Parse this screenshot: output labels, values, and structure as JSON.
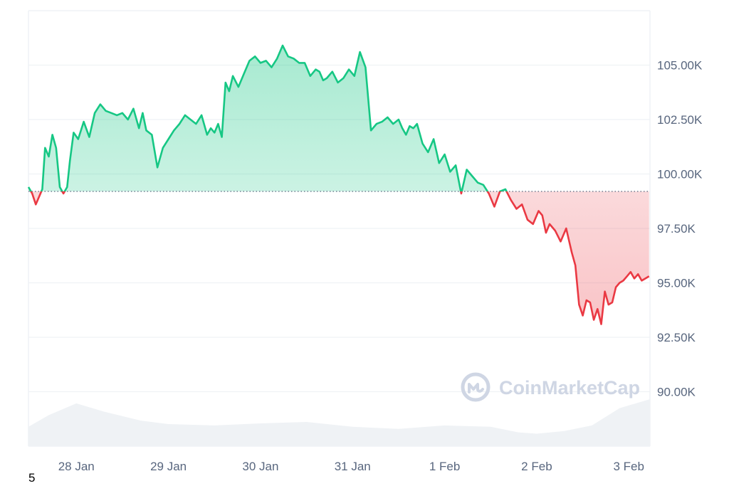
{
  "chart_data": {
    "type": "line",
    "title": "",
    "xlabel": "",
    "ylabel": "",
    "baseline": 99200,
    "ylim": [
      87500,
      107500
    ],
    "yticks": [
      {
        "value": 105000,
        "label": "105.00K"
      },
      {
        "value": 102500,
        "label": "102.50K"
      },
      {
        "value": 100000,
        "label": "100.00K"
      },
      {
        "value": 97500,
        "label": "97.50K"
      },
      {
        "value": 95000,
        "label": "95.00K"
      },
      {
        "value": 92500,
        "label": "92.50K"
      },
      {
        "value": 90000,
        "label": "90.00K"
      }
    ],
    "xticks": [
      {
        "value": 1,
        "label": "28 Jan"
      },
      {
        "value": 2,
        "label": "29 Jan"
      },
      {
        "value": 3,
        "label": "30 Jan"
      },
      {
        "value": 4,
        "label": "31 Jan"
      },
      {
        "value": 5,
        "label": "1 Feb"
      },
      {
        "value": 6,
        "label": "2 Feb"
      },
      {
        "value": 7,
        "label": "3 Feb"
      }
    ],
    "xlim": [
      0.48,
      7.23
    ],
    "series": [
      {
        "x": [
          0.48,
          0.52,
          0.56,
          0.6,
          0.63,
          0.66,
          0.7,
          0.74,
          0.78,
          0.82,
          0.86,
          0.9,
          0.93,
          0.97,
          1.02,
          1.08,
          1.14,
          1.2,
          1.26,
          1.32,
          1.38,
          1.44,
          1.5,
          1.56,
          1.62,
          1.68,
          1.72,
          1.76,
          1.82,
          1.88,
          1.94,
          2.0,
          2.06,
          2.12,
          2.18,
          2.24,
          2.3,
          2.36,
          2.42,
          2.46,
          2.5,
          2.54,
          2.58,
          2.62,
          2.66,
          2.7,
          2.76,
          2.82,
          2.88,
          2.94,
          3.0,
          3.06,
          3.12,
          3.18,
          3.24,
          3.3,
          3.36,
          3.42,
          3.48,
          3.54,
          3.6,
          3.64,
          3.68,
          3.72,
          3.78,
          3.84,
          3.9,
          3.96,
          4.02,
          4.08,
          4.14,
          4.2,
          4.26,
          4.32,
          4.38,
          4.44,
          4.5,
          4.54,
          4.58,
          4.62,
          4.66,
          4.7,
          4.76,
          4.82,
          4.88,
          4.94,
          5.0,
          5.06,
          5.12,
          5.18,
          5.24,
          5.3,
          5.36,
          5.42,
          5.48,
          5.54,
          5.6,
          5.66,
          5.72,
          5.78,
          5.84,
          5.9,
          5.96,
          6.02,
          6.06,
          6.1,
          6.14,
          6.2,
          6.26,
          6.32,
          6.38,
          6.42,
          6.46,
          6.5,
          6.54,
          6.58,
          6.62,
          6.66,
          6.7,
          6.74,
          6.78,
          6.82,
          6.86,
          6.9,
          6.94,
          6.98,
          7.02,
          7.06,
          7.1,
          7.14,
          7.18,
          7.22
        ],
        "y": [
          99400,
          99100,
          98600,
          99000,
          99300,
          101200,
          100800,
          101800,
          101200,
          99400,
          99100,
          99400,
          100600,
          101900,
          101600,
          102400,
          101700,
          102800,
          103200,
          102900,
          102800,
          102700,
          102800,
          102500,
          103000,
          102100,
          102800,
          102000,
          101800,
          100300,
          101200,
          101600,
          102000,
          102300,
          102700,
          102500,
          102300,
          102700,
          101800,
          102100,
          101900,
          102300,
          101700,
          104200,
          103800,
          104500,
          104000,
          104600,
          105200,
          105400,
          105100,
          105200,
          104900,
          105300,
          105900,
          105400,
          105300,
          105100,
          105100,
          104500,
          104800,
          104700,
          104300,
          104400,
          104700,
          104200,
          104400,
          104800,
          104500,
          105600,
          104900,
          102000,
          102300,
          102400,
          102600,
          102300,
          102500,
          102100,
          101800,
          102200,
          102100,
          102300,
          101400,
          101000,
          101600,
          100500,
          100900,
          100100,
          100400,
          99100,
          100200,
          99900,
          99600,
          99500,
          99100,
          98500,
          99200,
          99300,
          98800,
          98400,
          98600,
          97900,
          97700,
          98300,
          98100,
          97300,
          97700,
          97400,
          96900,
          97500,
          96400,
          95800,
          94000,
          93500,
          94200,
          94100,
          93300,
          93800,
          93100,
          94600,
          94000,
          94100,
          94800,
          95000,
          95100,
          95300,
          95500,
          95200,
          95400,
          95100,
          95200,
          95300
        ]
      }
    ],
    "volume": {
      "x": [
        0.48,
        0.7,
        1.0,
        1.3,
        1.7,
        2.0,
        2.5,
        3.0,
        3.5,
        4.0,
        4.5,
        5.0,
        5.5,
        5.8,
        6.0,
        6.3,
        6.6,
        6.9,
        7.23
      ],
      "y": [
        0.28,
        0.45,
        0.62,
        0.5,
        0.37,
        0.32,
        0.3,
        0.33,
        0.35,
        0.28,
        0.25,
        0.3,
        0.28,
        0.2,
        0.18,
        0.22,
        0.3,
        0.55,
        0.68
      ]
    },
    "colors": {
      "up_line": "#16c784",
      "down_line": "#ea3943",
      "grid": "#eff2f5",
      "baseline_dots": "#58667e",
      "volume": "#eff2f5",
      "watermark": "#cfd6e4"
    },
    "watermark": "CoinMarketCap",
    "footnote": "5"
  }
}
